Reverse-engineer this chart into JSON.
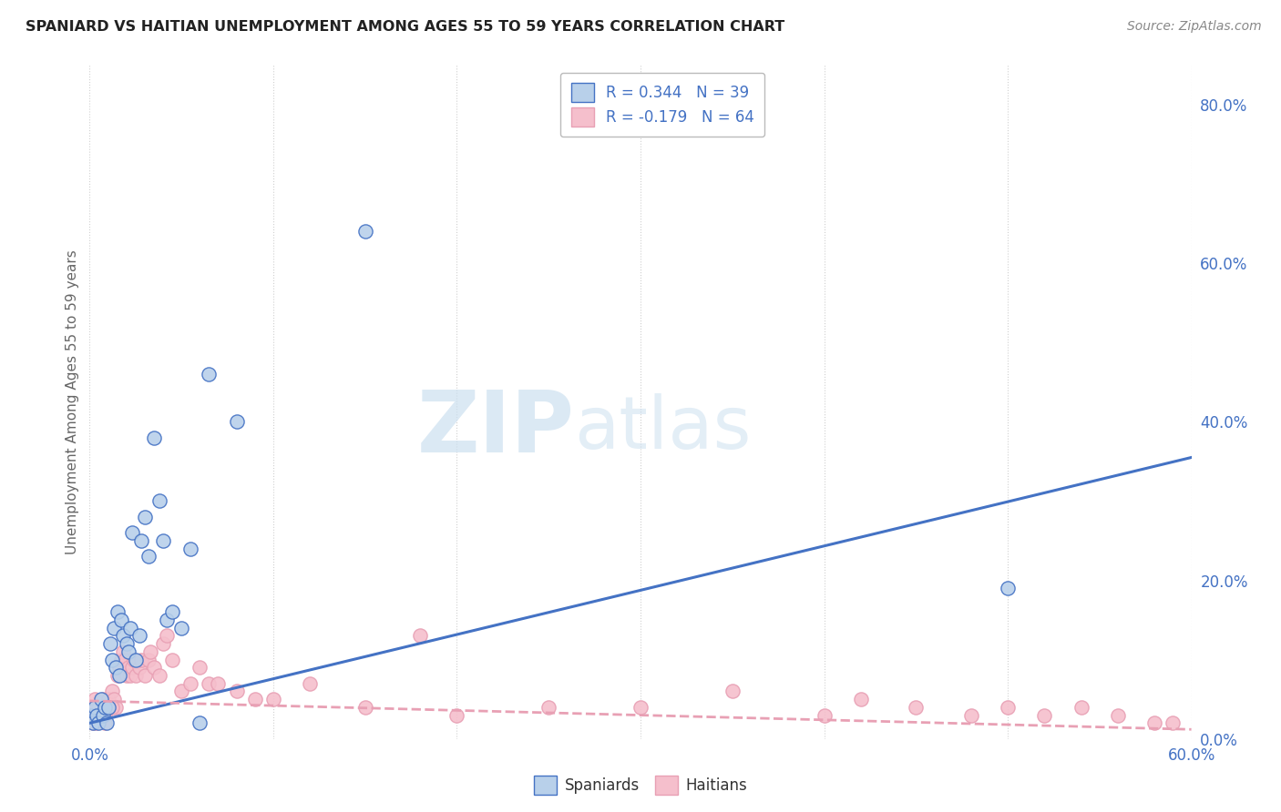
{
  "title": "SPANIARD VS HAITIAN UNEMPLOYMENT AMONG AGES 55 TO 59 YEARS CORRELATION CHART",
  "source": "Source: ZipAtlas.com",
  "ylabel": "Unemployment Among Ages 55 to 59 years",
  "watermark_zip": "ZIP",
  "watermark_atlas": "atlas",
  "spaniard_color": "#b8d0ea",
  "haitian_color": "#f5bfcc",
  "spaniard_line_color": "#4472c4",
  "haitian_line_color": "#e8a0b4",
  "background_color": "#ffffff",
  "grid_color": "#d0d0d0",
  "spaniard_scatter_x": [
    0.001,
    0.002,
    0.003,
    0.004,
    0.005,
    0.006,
    0.007,
    0.008,
    0.009,
    0.01,
    0.011,
    0.012,
    0.013,
    0.014,
    0.015,
    0.016,
    0.017,
    0.018,
    0.02,
    0.021,
    0.022,
    0.023,
    0.025,
    0.027,
    0.028,
    0.03,
    0.032,
    0.035,
    0.038,
    0.04,
    0.042,
    0.045,
    0.05,
    0.055,
    0.06,
    0.065,
    0.08,
    0.15,
    0.5
  ],
  "spaniard_scatter_y": [
    0.03,
    0.02,
    0.04,
    0.03,
    0.02,
    0.05,
    0.03,
    0.04,
    0.02,
    0.04,
    0.12,
    0.1,
    0.14,
    0.09,
    0.16,
    0.08,
    0.15,
    0.13,
    0.12,
    0.11,
    0.14,
    0.26,
    0.1,
    0.13,
    0.25,
    0.28,
    0.23,
    0.38,
    0.3,
    0.25,
    0.15,
    0.16,
    0.14,
    0.24,
    0.02,
    0.46,
    0.4,
    0.64,
    0.19
  ],
  "haitian_scatter_x": [
    0.001,
    0.002,
    0.003,
    0.004,
    0.005,
    0.006,
    0.007,
    0.008,
    0.009,
    0.01,
    0.011,
    0.012,
    0.013,
    0.014,
    0.015,
    0.016,
    0.017,
    0.018,
    0.019,
    0.02,
    0.021,
    0.022,
    0.023,
    0.024,
    0.025,
    0.027,
    0.028,
    0.03,
    0.032,
    0.033,
    0.035,
    0.038,
    0.04,
    0.042,
    0.045,
    0.05,
    0.055,
    0.06,
    0.065,
    0.07,
    0.08,
    0.09,
    0.1,
    0.12,
    0.15,
    0.18,
    0.2,
    0.25,
    0.3,
    0.35,
    0.4,
    0.42,
    0.45,
    0.48,
    0.5,
    0.52,
    0.54,
    0.56,
    0.58,
    0.59,
    0.002,
    0.005,
    0.008,
    0.012
  ],
  "haitian_scatter_y": [
    0.04,
    0.03,
    0.05,
    0.02,
    0.04,
    0.03,
    0.05,
    0.03,
    0.04,
    0.05,
    0.04,
    0.06,
    0.05,
    0.04,
    0.08,
    0.09,
    0.1,
    0.11,
    0.1,
    0.08,
    0.09,
    0.08,
    0.09,
    0.1,
    0.08,
    0.09,
    0.1,
    0.08,
    0.1,
    0.11,
    0.09,
    0.08,
    0.12,
    0.13,
    0.1,
    0.06,
    0.07,
    0.09,
    0.07,
    0.07,
    0.06,
    0.05,
    0.05,
    0.07,
    0.04,
    0.13,
    0.03,
    0.04,
    0.04,
    0.06,
    0.03,
    0.05,
    0.04,
    0.03,
    0.04,
    0.03,
    0.04,
    0.03,
    0.02,
    0.02,
    0.02,
    0.03,
    0.02,
    0.04
  ],
  "xlim": [
    0.0,
    0.6
  ],
  "ylim": [
    0.0,
    0.85
  ],
  "spaniard_line_x": [
    0.0,
    0.6
  ],
  "spaniard_line_y": [
    0.02,
    0.355
  ],
  "haitian_line_x": [
    0.0,
    0.6
  ],
  "haitian_line_y": [
    0.048,
    0.012
  ],
  "right_ytick_vals": [
    0.0,
    0.2,
    0.4,
    0.6,
    0.8
  ],
  "right_ytick_labels": [
    "0.0%",
    "20.0%",
    "40.0%",
    "60.0%",
    "80.0%"
  ]
}
